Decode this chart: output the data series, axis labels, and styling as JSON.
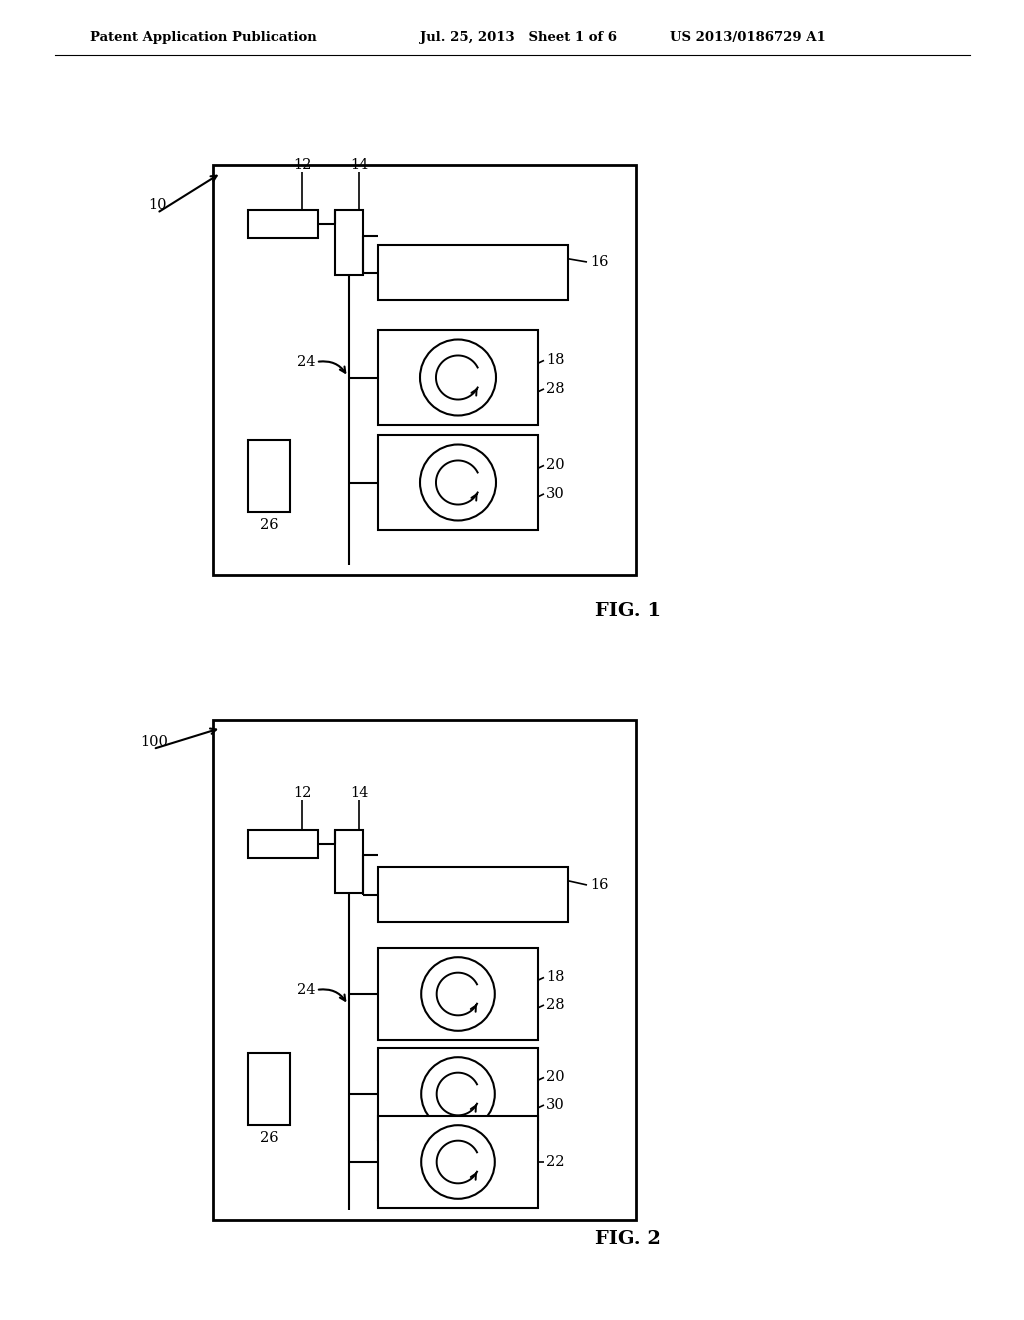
{
  "bg_color": "#ffffff",
  "header_left": "Patent Application Publication",
  "header_mid": "Jul. 25, 2013   Sheet 1 of 6",
  "header_right": "US 2013/0186729 A1",
  "fig1_label": "FIG. 1",
  "fig2_label": "FIG. 2"
}
